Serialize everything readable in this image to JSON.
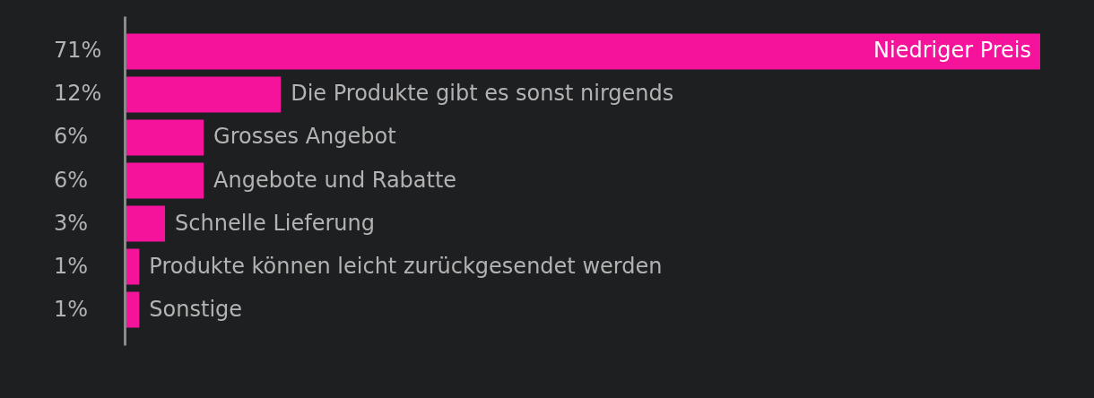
{
  "chart_data": {
    "type": "bar",
    "orientation": "horizontal",
    "categories": [
      "Niedriger Preis",
      "Die Produkte gibt es sonst nirgends",
      "Grosses Angebot",
      "Angebote und Rabatte",
      "Schnelle Lieferung",
      "Produkte können leicht zurückgesendet werden",
      "Sonstige"
    ],
    "values": [
      71,
      12,
      6,
      6,
      3,
      1,
      1
    ],
    "value_labels": [
      "71%",
      "12%",
      "6%",
      "6%",
      "3%",
      "1%",
      "1%"
    ],
    "color": "#f5139b"
  }
}
